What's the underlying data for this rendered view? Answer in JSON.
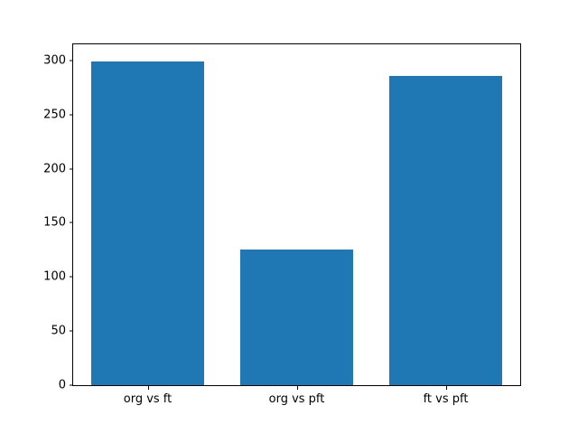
{
  "chart_data": {
    "type": "bar",
    "categories": [
      "org vs ft",
      "org vs pft",
      "ft vs pft"
    ],
    "values": [
      299,
      125,
      286
    ],
    "title": "",
    "xlabel": "",
    "ylabel": "",
    "ylim": [
      0,
      315
    ],
    "y_ticks": [
      0,
      50,
      100,
      150,
      200,
      250,
      300
    ],
    "bar_color": "#1f77b4",
    "axes_color": "#000000",
    "background_color": "#ffffff",
    "grid": false,
    "legend_position": "none"
  }
}
